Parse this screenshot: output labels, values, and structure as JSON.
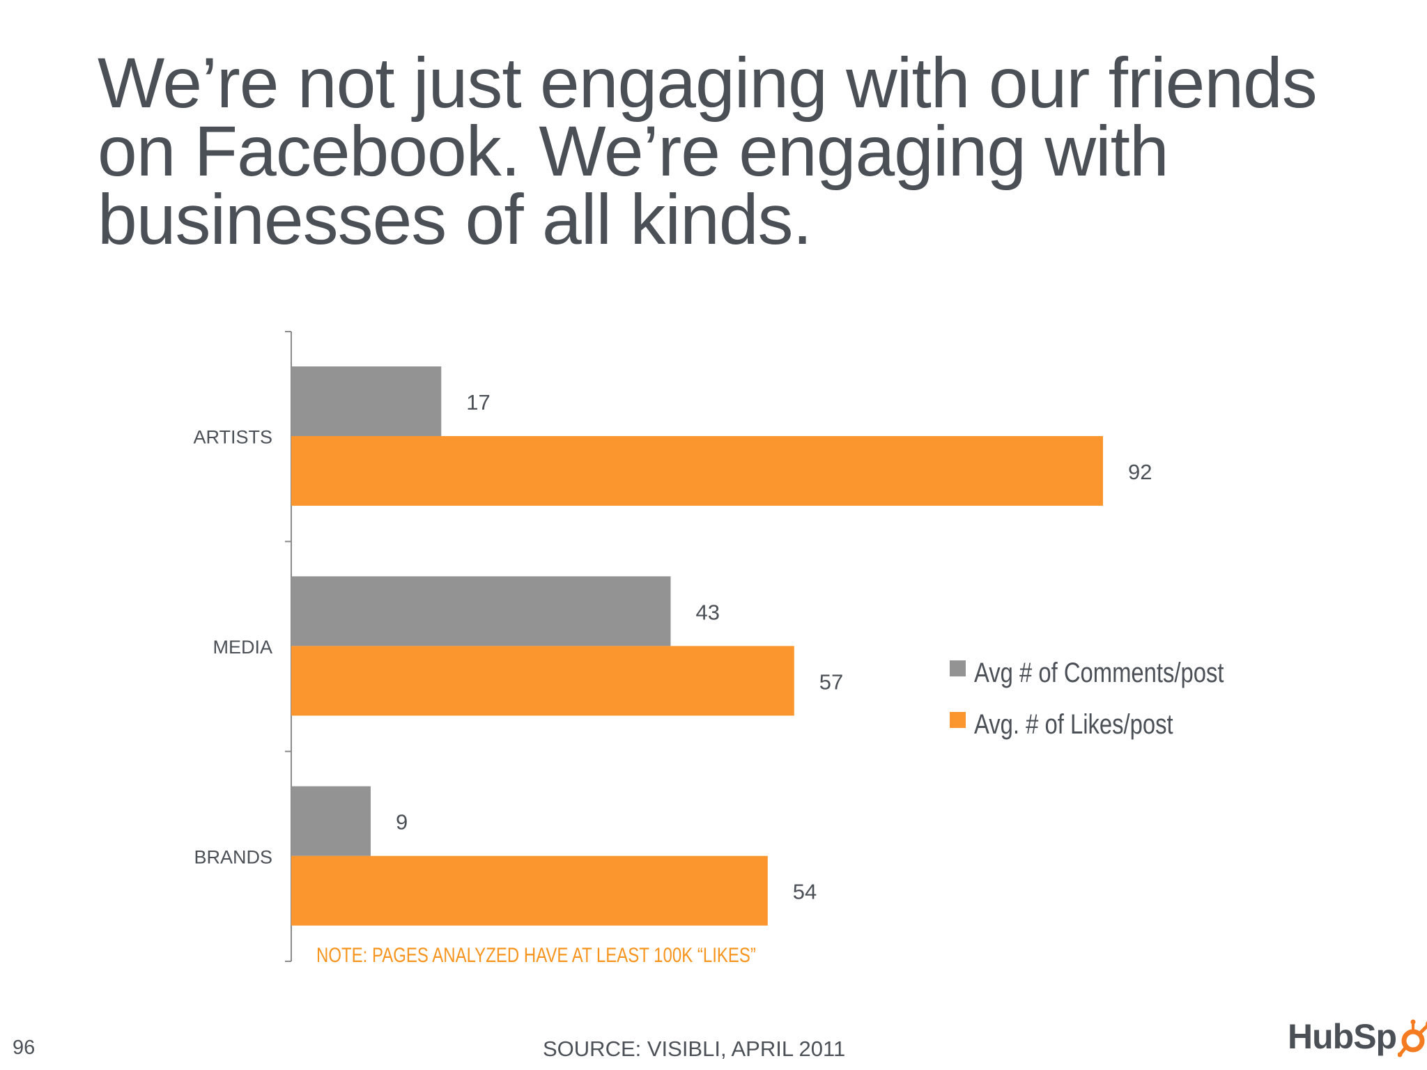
{
  "slide": {
    "title_lines": [
      "We’re not just engaging with our friends",
      "on Facebook. We’re engaging with",
      "businesses of all kinds."
    ],
    "note": "NOTE: PAGES ANALYZED HAVE AT LEAST 100K “LIKES”",
    "page_number": "96",
    "source": "SOURCE: VISIBLI, APRIL 2011",
    "logo_text": "HubSp",
    "logo_icon": "hubspot-sprocket-icon"
  },
  "chart_data": {
    "type": "bar",
    "orientation": "horizontal",
    "categories": [
      "ARTISTS",
      "MEDIA",
      "BRANDS"
    ],
    "series": [
      {
        "name": "Avg # of Comments/post",
        "color": "#939393",
        "values": [
          17,
          43,
          9
        ]
      },
      {
        "name": "Avg. # of Likes/post",
        "color": "#fb962e",
        "values": [
          92,
          57,
          54
        ]
      }
    ],
    "xlim": [
      0,
      100
    ],
    "grid": false,
    "legend_position": "right",
    "data_labels": true
  }
}
